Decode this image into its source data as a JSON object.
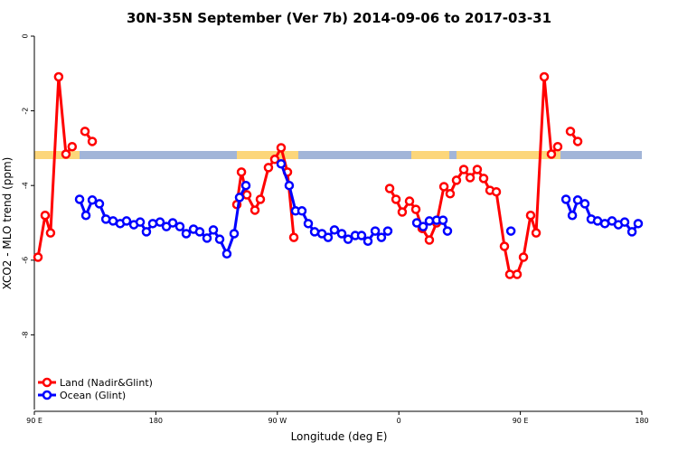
{
  "chart_data": {
    "type": "line",
    "title": "30N-35N September (Ver 7b)   2014-09-06 to 2017-03-31",
    "x_label": "Longitude (deg E)",
    "y_label": "XCO2 - MLO trend (ppm)",
    "xlim": [
      90,
      540
    ],
    "ylim": [
      -10,
      0
    ],
    "xticks": [
      {
        "value": 90,
        "label": "90 E"
      },
      180,
      {
        "value": 270,
        "label": "90 W"
      },
      {
        "value": 360,
        "label": "0"
      },
      {
        "value": 450,
        "label": "90 E"
      },
      {
        "value": 540,
        "label": "180"
      }
    ],
    "yticks": [
      0,
      -2,
      -4,
      -6,
      -8
    ],
    "legend": "bottom-left",
    "series": [
      {
        "name": "Land (Nadir&Glint)",
        "color": "#ff0000",
        "x": [
          92.7,
          98,
          102,
          108,
          113.4,
          118,
          null,
          127.5,
          132.9,
          null,
          240,
          243.4,
          247.4,
          253.4,
          257.4,
          263.4,
          268.1,
          272.8,
          277.5,
          282.2,
          null,
          353.2,
          357.9,
          362.5,
          367.9,
          372.6,
          377.3,
          382.6,
          388,
          393.4,
          398,
          402.7,
          408.1,
          412.8,
          418.1,
          422.8,
          427.5,
          432.2,
          438.2,
          442.2,
          447.6,
          452.3,
          457.6,
          461.7,
          467.7,
          473,
          477.7,
          null,
          487.1,
          492.5
        ],
        "values": [
          -5.92,
          -4.8,
          -5.27,
          -1.09,
          -3.16,
          -2.96,
          null,
          -2.55,
          -2.82,
          null,
          -4.51,
          -3.64,
          -4.25,
          -4.66,
          -4.37,
          -3.52,
          -3.3,
          -2.99,
          -3.64,
          -5.39,
          null,
          -4.08,
          -4.37,
          -4.71,
          -4.42,
          -4.64,
          -5.15,
          -5.46,
          -5.0,
          -4.03,
          -4.22,
          -3.86,
          -3.57,
          -3.79,
          -3.57,
          -3.81,
          -4.13,
          -4.17,
          -5.63,
          -6.38,
          -6.38,
          -5.92,
          -4.8,
          -5.27,
          -1.09,
          -3.16,
          -2.96,
          null,
          -2.55,
          -2.82
        ]
      },
      {
        "name": "Ocean (Glint)",
        "color": "#0000ff",
        "x": [
          123.5,
          128.2,
          132.9,
          138.2,
          143,
          148.3,
          153.6,
          158.3,
          163.7,
          168.4,
          173,
          177.7,
          183.1,
          187.8,
          192.5,
          197.8,
          202.5,
          207.9,
          212.5,
          217.9,
          222.6,
          227.3,
          232.6,
          238,
          242,
          246.7,
          null,
          272.8,
          278.8,
          283.5,
          288.2,
          292.9,
          297.6,
          303,
          307.6,
          312.3,
          317.7,
          322.4,
          327.7,
          332.4,
          337.1,
          342.5,
          347.1,
          351.8,
          null,
          373.3,
          378,
          382.6,
          388,
          392.7,
          396,
          null,
          443,
          null,
          483.8,
          488.5,
          492.5,
          497.8,
          502.5,
          507.2,
          512.6,
          517.9,
          522.6,
          527.3,
          532.7,
          537.3
        ],
        "values": [
          -4.37,
          -4.8,
          -4.39,
          -4.49,
          -4.9,
          -4.95,
          -5.02,
          -4.95,
          -5.05,
          -4.98,
          -5.24,
          -5.02,
          -4.98,
          -5.1,
          -5.0,
          -5.1,
          -5.29,
          -5.17,
          -5.24,
          -5.41,
          -5.19,
          -5.44,
          -5.83,
          -5.29,
          -4.32,
          -4.0,
          null,
          -3.42,
          -4.0,
          -4.68,
          -4.68,
          -5.02,
          -5.24,
          -5.29,
          -5.39,
          -5.19,
          -5.29,
          -5.44,
          -5.34,
          -5.34,
          -5.49,
          -5.22,
          -5.39,
          -5.22,
          null,
          -5.0,
          -5.1,
          -4.95,
          -4.93,
          -4.93,
          -5.22,
          null,
          -5.22,
          null,
          -4.37,
          -4.8,
          -4.39,
          -4.49,
          -4.9,
          -4.95,
          -5.02,
          -4.95,
          -5.05,
          -4.98,
          -5.24,
          -5.02
        ]
      }
    ]
  }
}
